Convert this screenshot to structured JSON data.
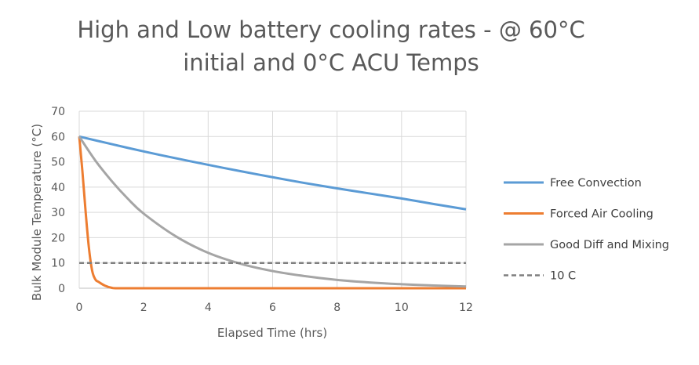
{
  "chart_data": {
    "type": "line",
    "title_lines": [
      "High and Low battery cooling rates - @ 60°C",
      "initial and 0°C ACU Temps"
    ],
    "xlabel": "Elapsed Time (hrs)",
    "ylabel": "Bulk Module Temperature (°C)",
    "xlim": [
      0,
      12
    ],
    "ylim": [
      0,
      70
    ],
    "xticks": [
      0,
      2,
      4,
      6,
      8,
      10,
      12
    ],
    "yticks": [
      0,
      10,
      20,
      30,
      40,
      50,
      60,
      70
    ],
    "grid": true,
    "legend_position": "right",
    "series": [
      {
        "name": "Free Convection",
        "color": "#5B9BD5",
        "dash": "solid",
        "x": [
          0,
          1,
          2,
          3,
          4,
          5,
          6,
          7,
          8,
          9,
          10,
          11,
          12
        ],
        "y": [
          60,
          57,
          54.1,
          51.4,
          48.8,
          46.3,
          43.9,
          41.6,
          39.5,
          37.5,
          35.5,
          33.3,
          31.2
        ]
      },
      {
        "name": "Forced Air Cooling",
        "color": "#ED7D31",
        "dash": "solid",
        "x": [
          0,
          0.1,
          0.2,
          0.3,
          0.4,
          0.5,
          0.6,
          0.8,
          1.0,
          1.2,
          2,
          4,
          6,
          8,
          10,
          12
        ],
        "y": [
          60,
          46,
          30,
          16,
          7,
          3.5,
          2.5,
          1.0,
          0.2,
          0,
          0,
          0,
          0,
          0,
          0,
          0
        ]
      },
      {
        "name": "Good Diff and Mixing",
        "color": "#A5A5A5",
        "dash": "solid",
        "x": [
          0,
          0.5,
          1,
          1.5,
          2,
          3,
          4,
          5,
          6,
          7,
          8,
          9,
          10,
          11,
          12
        ],
        "y": [
          60,
          50.5,
          42.5,
          35.5,
          29.5,
          20.5,
          14,
          9.7,
          6.8,
          4.8,
          3.3,
          2.3,
          1.6,
          1.1,
          0.7
        ]
      },
      {
        "name": "10 C",
        "color": "#7F7F7F",
        "dash": "dashed",
        "x": [
          0,
          12
        ],
        "y": [
          10,
          10
        ]
      }
    ]
  }
}
